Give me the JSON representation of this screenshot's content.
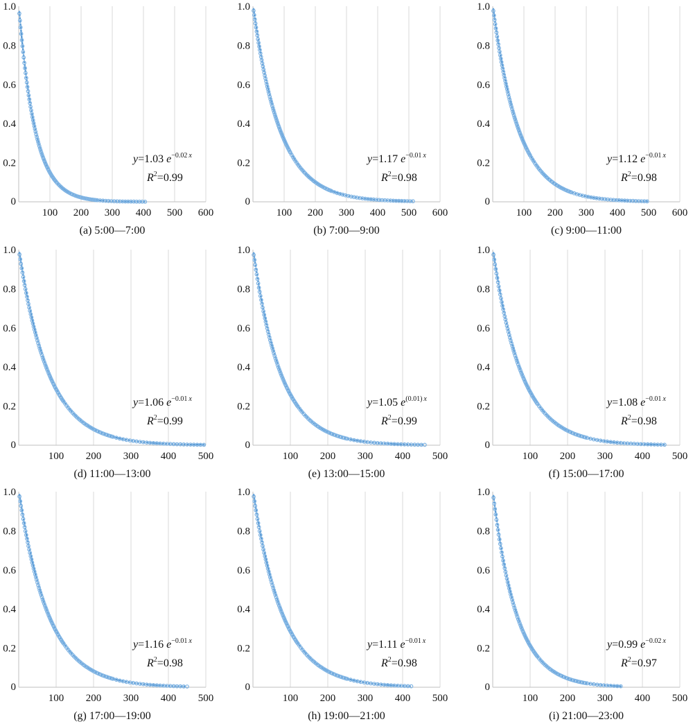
{
  "colors": {
    "points": "#7eb3e3",
    "trend": "#5b9bd5",
    "grid": "#d9d9d9",
    "axis": "#bfbfbf",
    "text": "#111111"
  },
  "chart_data": [
    {
      "type": "scatter",
      "title": "",
      "caption": "(a) 5:00—7:00",
      "xlim": [
        0,
        600
      ],
      "ylim": [
        0,
        1
      ],
      "xticks": [
        "0",
        "100",
        "200",
        "300",
        "400",
        "500",
        "600"
      ],
      "yticks": [
        "0",
        "0.2",
        "0.4",
        "0.6",
        "0.8",
        "1.0"
      ],
      "max_x": 405,
      "decay": 0.019,
      "equation": {
        "coef": "1.03",
        "exp": "−0.02",
        "var": "x",
        "r2": "0.99"
      }
    },
    {
      "type": "scatter",
      "title": "",
      "caption": "(b) 7:00—9:00",
      "xlim": [
        0,
        600
      ],
      "ylim": [
        0,
        1
      ],
      "xticks": [
        "0",
        "100",
        "200",
        "300",
        "400",
        "500",
        "600"
      ],
      "yticks": [
        "0",
        "0.2",
        "0.4",
        "0.6",
        "0.8",
        "1.0"
      ],
      "max_x": 520,
      "decay": 0.0115,
      "equation": {
        "coef": "1.17",
        "exp": "−0.01",
        "var": "x",
        "r2": "0.98"
      }
    },
    {
      "type": "scatter",
      "title": "",
      "caption": "(c) 9:00—11:00",
      "xlim": [
        0,
        600
      ],
      "ylim": [
        0,
        1
      ],
      "xticks": [
        "0",
        "100",
        "200",
        "300",
        "400",
        "500",
        "600"
      ],
      "yticks": [
        "0",
        "0.2",
        "0.4",
        "0.6",
        "0.8",
        "1.0"
      ],
      "max_x": 495,
      "decay": 0.012,
      "equation": {
        "coef": "1.12",
        "exp": "−0.01",
        "var": "x",
        "r2": "0.98"
      }
    },
    {
      "type": "scatter",
      "title": "",
      "caption": "(d) 11:00—13:00",
      "xlim": [
        0,
        500
      ],
      "ylim": [
        0,
        1
      ],
      "xticks": [
        "0",
        "100",
        "200",
        "300",
        "400",
        "500"
      ],
      "yticks": [
        "0",
        "0.2",
        "0.4",
        "0.6",
        "0.8",
        "1.0"
      ],
      "max_x": 495,
      "decay": 0.0125,
      "equation": {
        "coef": "1.06",
        "exp": "−0.01",
        "var": "x",
        "r2": "0.99"
      }
    },
    {
      "type": "scatter",
      "title": "",
      "caption": "(e) 13:00—15:00",
      "xlim": [
        0,
        500
      ],
      "ylim": [
        0,
        1
      ],
      "xticks": [
        "0",
        "100",
        "200",
        "300",
        "400",
        "500"
      ],
      "yticks": [
        "0",
        "0.2",
        "0.4",
        "0.6",
        "0.8",
        "1.0"
      ],
      "max_x": 460,
      "decay": 0.0135,
      "equation": {
        "coef": "1.05",
        "exp": "(0.01)",
        "var": "x",
        "r2": "0.99"
      }
    },
    {
      "type": "scatter",
      "title": "",
      "caption": "(f) 15:00—17:00",
      "xlim": [
        0,
        500
      ],
      "ylim": [
        0,
        1
      ],
      "xticks": [
        "0",
        "100",
        "200",
        "300",
        "400",
        "500"
      ],
      "yticks": [
        "0",
        "0.2",
        "0.4",
        "0.6",
        "0.8",
        "1.0"
      ],
      "max_x": 465,
      "decay": 0.013,
      "equation": {
        "coef": "1.08",
        "exp": "−0.01",
        "var": "x",
        "r2": "0.98"
      }
    },
    {
      "type": "scatter",
      "title": "",
      "caption": "(g) 17:00—19:00",
      "xlim": [
        0,
        500
      ],
      "ylim": [
        0,
        1
      ],
      "xticks": [
        "0",
        "100",
        "200",
        "300",
        "400",
        "500"
      ],
      "yticks": [
        "0",
        "0.2",
        "0.4",
        "0.6",
        "0.8",
        "1.0"
      ],
      "max_x": 450,
      "decay": 0.0125,
      "equation": {
        "coef": "1.16",
        "exp": "−0.01",
        "var": "x",
        "r2": "0.98"
      }
    },
    {
      "type": "scatter",
      "title": "",
      "caption": "(h) 19:00—21:00",
      "xlim": [
        0,
        500
      ],
      "ylim": [
        0,
        1
      ],
      "xticks": [
        "0",
        "100",
        "200",
        "300",
        "400",
        "500"
      ],
      "yticks": [
        "0",
        "0.2",
        "0.4",
        "0.6",
        "0.8",
        "1.0"
      ],
      "max_x": 430,
      "decay": 0.0125,
      "equation": {
        "coef": "1.11",
        "exp": "−0.01",
        "var": "x",
        "r2": "0.98"
      }
    },
    {
      "type": "scatter",
      "title": "",
      "caption": "(i) 21:00—23:00",
      "xlim": [
        0,
        500
      ],
      "ylim": [
        0,
        1
      ],
      "xticks": [
        "0",
        "100",
        "200",
        "300",
        "400",
        "500"
      ],
      "yticks": [
        "0",
        "0.2",
        "0.4",
        "0.6",
        "0.8",
        "1.0"
      ],
      "max_x": 350,
      "decay": 0.0155,
      "equation": {
        "coef": "0.99",
        "exp": "−0.02",
        "var": "x",
        "r2": "0.97"
      }
    }
  ]
}
